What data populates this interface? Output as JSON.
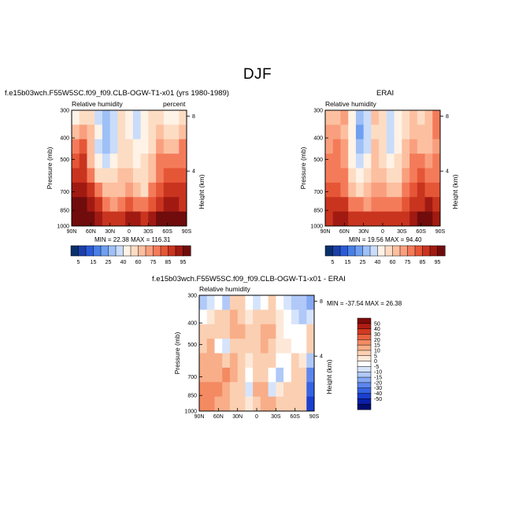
{
  "main_title": "DJF",
  "panels": [
    {
      "title": "f.e15b03wch.F55W5SC.f09_f09.CLB-OGW-T1-x01 (yrs 1980-1989)",
      "variable": "Relative humidity",
      "units": "percent",
      "stats": "MIN =   22.38   MAX = 116.31"
    },
    {
      "title": "ERAI",
      "variable": "Relative humidity",
      "units": "",
      "stats": "MIN =   19.56   MAX =   94.40"
    },
    {
      "title": "f.e15b03wch.F55W5SC.f09_f09.CLB-OGW-T1-x01 - ERAI",
      "variable": "Relative humidity",
      "units": "",
      "stats": "MIN = -37.54   MAX =   26.38"
    }
  ],
  "colors": {
    "rh_scale": [
      "#08306b",
      "#1c3fa8",
      "#2a5bd7",
      "#4a7fe6",
      "#6f9ff0",
      "#9ec0f7",
      "#c9dcfa",
      "#fff2e6",
      "#fddcc4",
      "#fcbfa0",
      "#f99f7e",
      "#f47b5a",
      "#e55637",
      "#c9341f",
      "#a11a12",
      "#700c0c"
    ],
    "diff_scale": [
      "#000c6e",
      "#0a1fa8",
      "#1a3fcf",
      "#3563e3",
      "#5c87ee",
      "#86a9f4",
      "#b0c9f8",
      "#d6e4fb",
      "#ffffff",
      "#fde8d8",
      "#fbcfb2",
      "#f8ae88",
      "#f38a62",
      "#e8623d",
      "#d23a22",
      "#b01c14",
      "#800a0a"
    ]
  },
  "chart_data": [
    {
      "type": "heatmap",
      "title": "f.e15b03wch.F55W5SC.f09_f09.CLB-OGW-T1-x01 (yrs 1980-1989)",
      "variable": "Relative humidity",
      "units": "percent",
      "x_ticks": [
        "90N",
        "60N",
        "30N",
        "0",
        "30S",
        "60S",
        "90S"
      ],
      "x_values": [
        90,
        60,
        30,
        0,
        -30,
        -60,
        -90
      ],
      "ylabel": "Pressure (mb)",
      "y_ticks": [
        "300",
        "400",
        "500",
        "700",
        "850",
        "1000"
      ],
      "y_values": [
        300,
        400,
        500,
        700,
        850,
        1000
      ],
      "y_scale": "log",
      "ylim": [
        1000,
        300
      ],
      "y2label": "Height (km)",
      "y2_ticks": [
        "8",
        "4"
      ],
      "y2_values": [
        8,
        4
      ],
      "colorbar_ticks": [
        "5",
        "15",
        "25",
        "40",
        "60",
        "75",
        "85",
        "95"
      ],
      "colorbar_levels": [
        5,
        10,
        15,
        20,
        25,
        30,
        40,
        50,
        60,
        65,
        70,
        75,
        80,
        85,
        90,
        95
      ],
      "min": 22.38,
      "max": 116.31,
      "grid": [
        [
          45,
          52,
          52,
          35,
          28,
          33,
          55,
          45,
          30,
          45,
          50,
          52,
          45,
          40,
          50
        ],
        [
          60,
          65,
          60,
          40,
          25,
          35,
          55,
          48,
          35,
          48,
          56,
          60,
          55,
          50,
          62
        ],
        [
          70,
          75,
          62,
          38,
          28,
          35,
          56,
          50,
          42,
          48,
          58,
          66,
          64,
          62,
          72
        ],
        [
          76,
          80,
          60,
          40,
          35,
          42,
          58,
          55,
          48,
          52,
          60,
          70,
          72,
          70,
          74
        ],
        [
          82,
          84,
          72,
          55,
          50,
          52,
          60,
          60,
          52,
          54,
          64,
          74,
          78,
          76,
          78
        ],
        [
          88,
          88,
          80,
          70,
          62,
          60,
          62,
          68,
          60,
          58,
          70,
          78,
          82,
          80,
          80
        ],
        [
          92,
          92,
          88,
          82,
          74,
          68,
          72,
          78,
          74,
          70,
          78,
          82,
          86,
          86,
          84
        ],
        [
          100,
          96,
          92,
          88,
          82,
          80,
          84,
          88,
          88,
          84,
          86,
          90,
          94,
          98,
          92
        ]
      ]
    },
    {
      "type": "heatmap",
      "title": "ERAI",
      "variable": "Relative humidity",
      "x_ticks": [
        "90N",
        "60N",
        "30N",
        "0",
        "30S",
        "60S",
        "90S"
      ],
      "x_values": [
        90,
        60,
        30,
        0,
        -30,
        -60,
        -90
      ],
      "ylabel": "Pressure (mb)",
      "y_ticks": [
        "300",
        "400",
        "500",
        "700",
        "850",
        "1000"
      ],
      "y_values": [
        300,
        400,
        500,
        700,
        850,
        1000
      ],
      "y_scale": "log",
      "ylim": [
        1000,
        300
      ],
      "y2label": "Height (km)",
      "y2_ticks": [
        "8",
        "4"
      ],
      "y2_values": [
        8,
        4
      ],
      "colorbar_ticks": [
        "5",
        "15",
        "25",
        "40",
        "60",
        "75",
        "85",
        "95"
      ],
      "colorbar_levels": [
        5,
        10,
        15,
        20,
        25,
        30,
        40,
        50,
        60,
        65,
        70,
        75,
        80,
        85,
        90,
        95
      ],
      "min": 19.56,
      "max": 94.4,
      "grid": [
        [
          60,
          62,
          65,
          45,
          25,
          35,
          60,
          55,
          35,
          45,
          55,
          60,
          55,
          60,
          72
        ],
        [
          65,
          66,
          64,
          40,
          22,
          35,
          58,
          50,
          30,
          45,
          58,
          64,
          60,
          62,
          70
        ],
        [
          68,
          70,
          66,
          42,
          25,
          38,
          60,
          52,
          32,
          46,
          60,
          68,
          64,
          62,
          68
        ],
        [
          70,
          72,
          68,
          46,
          30,
          42,
          62,
          56,
          40,
          50,
          62,
          70,
          70,
          68,
          70
        ],
        [
          72,
          74,
          70,
          55,
          45,
          52,
          64,
          60,
          50,
          56,
          66,
          74,
          76,
          74,
          74
        ],
        [
          76,
          78,
          74,
          64,
          58,
          60,
          66,
          66,
          60,
          62,
          70,
          78,
          80,
          78,
          78
        ],
        [
          80,
          82,
          80,
          74,
          70,
          68,
          72,
          74,
          70,
          72,
          78,
          82,
          84,
          86,
          82
        ],
        [
          84,
          86,
          86,
          82,
          80,
          80,
          82,
          84,
          82,
          80,
          84,
          88,
          92,
          92,
          86
        ]
      ]
    },
    {
      "type": "heatmap",
      "title": "f.e15b03wch.F55W5SC.f09_f09.CLB-OGW-T1-x01 - ERAI",
      "variable": "Relative humidity",
      "x_ticks": [
        "90N",
        "60N",
        "30N",
        "0",
        "30S",
        "60S",
        "90S"
      ],
      "x_values": [
        90,
        60,
        30,
        0,
        -30,
        -60,
        -90
      ],
      "ylabel": "Pressure (mb)",
      "y_ticks": [
        "300",
        "400",
        "500",
        "700",
        "850",
        "1000"
      ],
      "y_values": [
        300,
        400,
        500,
        700,
        850,
        1000
      ],
      "y_scale": "log",
      "ylim": [
        1000,
        300
      ],
      "y2label": "Height (km)",
      "y2_ticks": [
        "8",
        "4"
      ],
      "y2_values": [
        8,
        4
      ],
      "colorbar_ticks": [
        "50",
        "40",
        "30",
        "20",
        "15",
        "10",
        "5",
        "0",
        "-5",
        "-10",
        "-15",
        "-20",
        "-30",
        "-40",
        "-50"
      ],
      "colorbar_levels": [
        -50,
        -40,
        -30,
        -20,
        -15,
        -10,
        -5,
        -2,
        0,
        2,
        5,
        10,
        15,
        20,
        30,
        40,
        50
      ],
      "min": -37.54,
      "max": 26.38,
      "grid": [
        [
          -6,
          -4,
          -2,
          -8,
          2,
          4,
          -2,
          -3,
          -2,
          2,
          -2,
          -4,
          -6,
          -8,
          -12
        ],
        [
          -2,
          0,
          2,
          4,
          6,
          2,
          0,
          2,
          4,
          4,
          0,
          -2,
          -4,
          -6,
          -4
        ],
        [
          2,
          4,
          3,
          2,
          5,
          6,
          2,
          2,
          8,
          6,
          0,
          -2,
          -1,
          -1,
          4
        ],
        [
          4,
          6,
          -2,
          -4,
          3,
          4,
          2,
          3,
          6,
          4,
          0,
          0,
          -2,
          -2,
          2
        ],
        [
          6,
          8,
          6,
          4,
          6,
          4,
          0,
          2,
          4,
          2,
          -2,
          -1,
          2,
          0,
          -8
        ],
        [
          8,
          9,
          8,
          12,
          6,
          2,
          -2,
          4,
          2,
          -2,
          -6,
          -2,
          3,
          2,
          -20
        ],
        [
          10,
          10,
          10,
          8,
          4,
          2,
          -4,
          6,
          6,
          -4,
          0,
          2,
          4,
          2,
          -30
        ],
        [
          14,
          12,
          8,
          6,
          4,
          2,
          0,
          4,
          8,
          6,
          2,
          4,
          4,
          2,
          -36
        ]
      ]
    }
  ]
}
